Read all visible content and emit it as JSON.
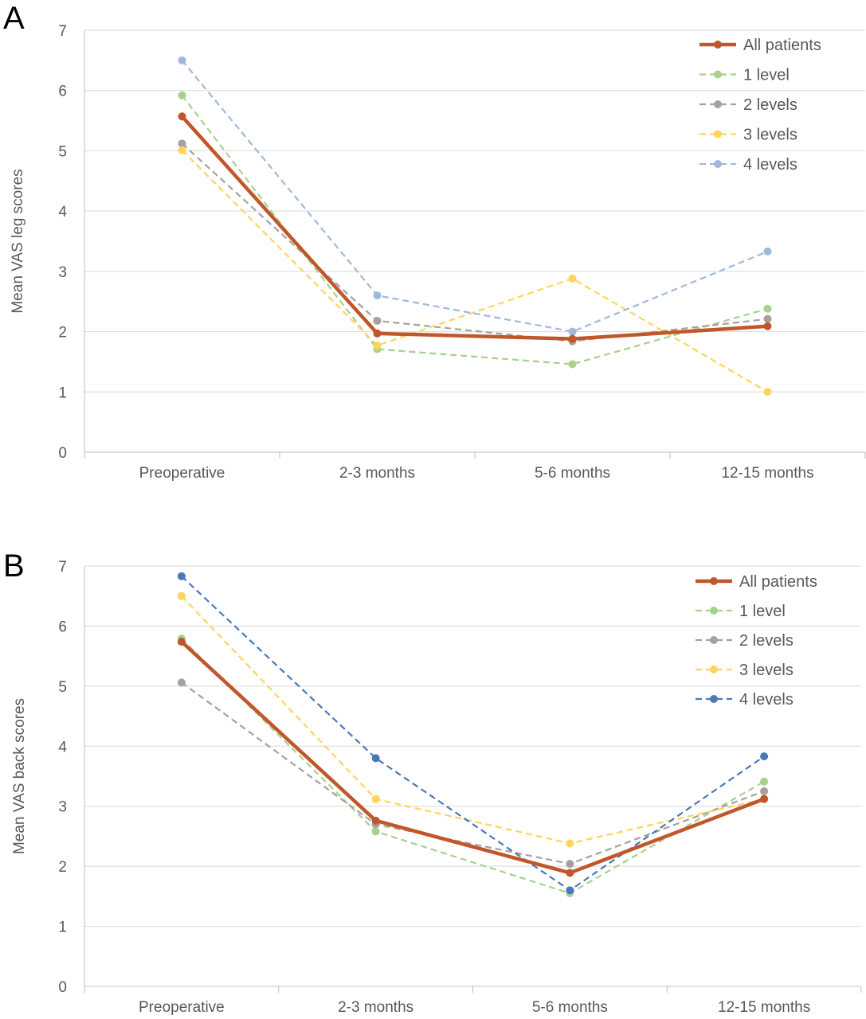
{
  "chart_data": [
    {
      "type": "line",
      "panel_label": "A",
      "categories": [
        "Preoperative",
        "2-3 months",
        "5-6 months",
        "12-15 months"
      ],
      "ylabel": "Mean VAS leg scores",
      "ylim": [
        0,
        7
      ],
      "yticks": [
        "0",
        "1",
        "2",
        "3",
        "4",
        "5",
        "6",
        "7"
      ],
      "grid": true,
      "legend_position": "top-right",
      "series": [
        {
          "name": "All patients",
          "values": [
            5.57,
            1.97,
            1.88,
            2.09
          ],
          "color": "#c0572a",
          "style": "solid"
        },
        {
          "name": "1 level",
          "values": [
            5.92,
            1.71,
            1.46,
            2.38
          ],
          "color": "#a9d18e",
          "style": "dashed"
        },
        {
          "name": "2 levels",
          "values": [
            5.12,
            2.18,
            1.84,
            2.21
          ],
          "color": "#a9a09b",
          "style": "dashed"
        },
        {
          "name": "3 levels",
          "values": [
            5.01,
            1.77,
            2.88,
            1.0
          ],
          "color": "#ffd45c",
          "style": "dashed"
        },
        {
          "name": "4 levels",
          "values": [
            6.5,
            2.6,
            2.0,
            3.33
          ],
          "color": "#9fb9dc",
          "style": "dashed"
        }
      ]
    },
    {
      "type": "line",
      "panel_label": "B",
      "categories": [
        "Preoperative",
        "2-3 months",
        "5-6 months",
        "12-15 months"
      ],
      "ylabel": "Mean VAS back scores",
      "ylim": [
        0,
        7
      ],
      "yticks": [
        "0",
        "1",
        "2",
        "3",
        "4",
        "5",
        "6",
        "7"
      ],
      "grid": true,
      "legend_position": "top-right",
      "series": [
        {
          "name": "All patients",
          "values": [
            5.74,
            2.76,
            1.89,
            3.12
          ],
          "color": "#c0572a",
          "style": "solid"
        },
        {
          "name": "1 level",
          "values": [
            5.79,
            2.58,
            1.55,
            3.41
          ],
          "color": "#a9d18e",
          "style": "dashed"
        },
        {
          "name": "2 levels",
          "values": [
            5.06,
            2.7,
            2.04,
            3.25
          ],
          "color": "#a9a09b",
          "style": "dashed"
        },
        {
          "name": "3 levels",
          "values": [
            6.5,
            3.12,
            2.38,
            3.12
          ],
          "color": "#ffd45c",
          "style": "dashed"
        },
        {
          "name": "4 levels",
          "values": [
            6.83,
            3.8,
            1.6,
            3.83
          ],
          "color": "#4a78b8",
          "style": "dashed"
        }
      ]
    }
  ]
}
